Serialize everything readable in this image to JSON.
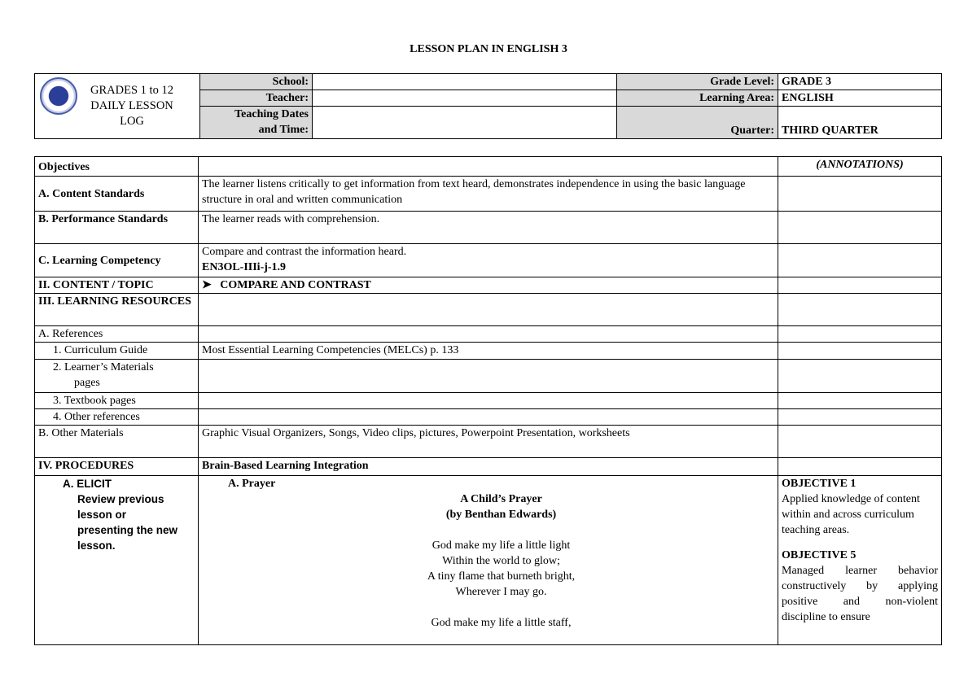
{
  "title": "LESSON PLAN IN ENGLISH 3",
  "header": {
    "log_title_1": "GRADES 1 to 12",
    "log_title_2": "DAILY LESSON",
    "log_title_3": "LOG",
    "school_label": "School:",
    "school_value": "",
    "teacher_label": "Teacher:",
    "teacher_value": "",
    "dates_label_1": "Teaching Dates",
    "dates_label_2": "and Time:",
    "dates_value": "",
    "grade_label": "Grade Level:",
    "grade_value": "GRADE 3",
    "area_label": "Learning Area:",
    "area_value": "ENGLISH",
    "quarter_label": "Quarter:",
    "quarter_value": "THIRD QUARTER"
  },
  "rows": {
    "objectives": "Objectives",
    "annotations": "(ANNOTATIONS)",
    "content_std_label": "A. Content Standards",
    "content_std": "The learner listens critically to get information from text heard, demonstrates independence in using the basic language structure in oral and written communication",
    "perf_std_label": "B. Performance Standards",
    "perf_std": "The learner reads with comprehension.",
    "competency_label": "C. Learning Competency",
    "competency": "Compare and contrast the information heard.",
    "competency_code": "EN3OL-IIIi-j-1.9",
    "topic_label": "II. CONTENT / TOPIC",
    "topic": "COMPARE AND CONTRAST",
    "resources_label": "III. LEARNING RESOURCES",
    "references_label": "A. References",
    "curriculum_label": "1. Curriculum Guide",
    "curriculum": "Most Essential Learning Competencies (MELCs) p. 133",
    "learners_label_1": "2. Learner’s Materials",
    "learners_label_2": "pages",
    "textbook_label": "3. Textbook pages",
    "other_refs_label": "4. Other references",
    "other_materials_label": "B. Other Materials",
    "other_materials": "Graphic Visual Organizers, Songs, Video clips, pictures, Powerpoint Presentation, worksheets",
    "procedures_label": "IV. PROCEDURES",
    "procedures": "Brain-Based Learning Integration",
    "elicit_label": "A.  ELICIT",
    "elicit_desc": "Review previous lesson or presenting the new lesson.",
    "prayer_label": "A.  Prayer",
    "poem_title": "A Child’s Prayer",
    "poem_author": "(by Benthan Edwards)",
    "poem_lines": [
      "God make my life a little light",
      "Within the world to glow;",
      "A tiny flame that burneth bright,",
      "Wherever I may go.",
      "",
      "God make my life a little staff,"
    ],
    "obj1_title": "OBJECTIVE 1",
    "obj1_text": "Applied knowledge of content within and across curriculum teaching areas.",
    "obj5_title": "OBJECTIVE 5",
    "obj5_text": "Managed learner behavior constructively by applying positive and non-violent discipline to ensure"
  }
}
